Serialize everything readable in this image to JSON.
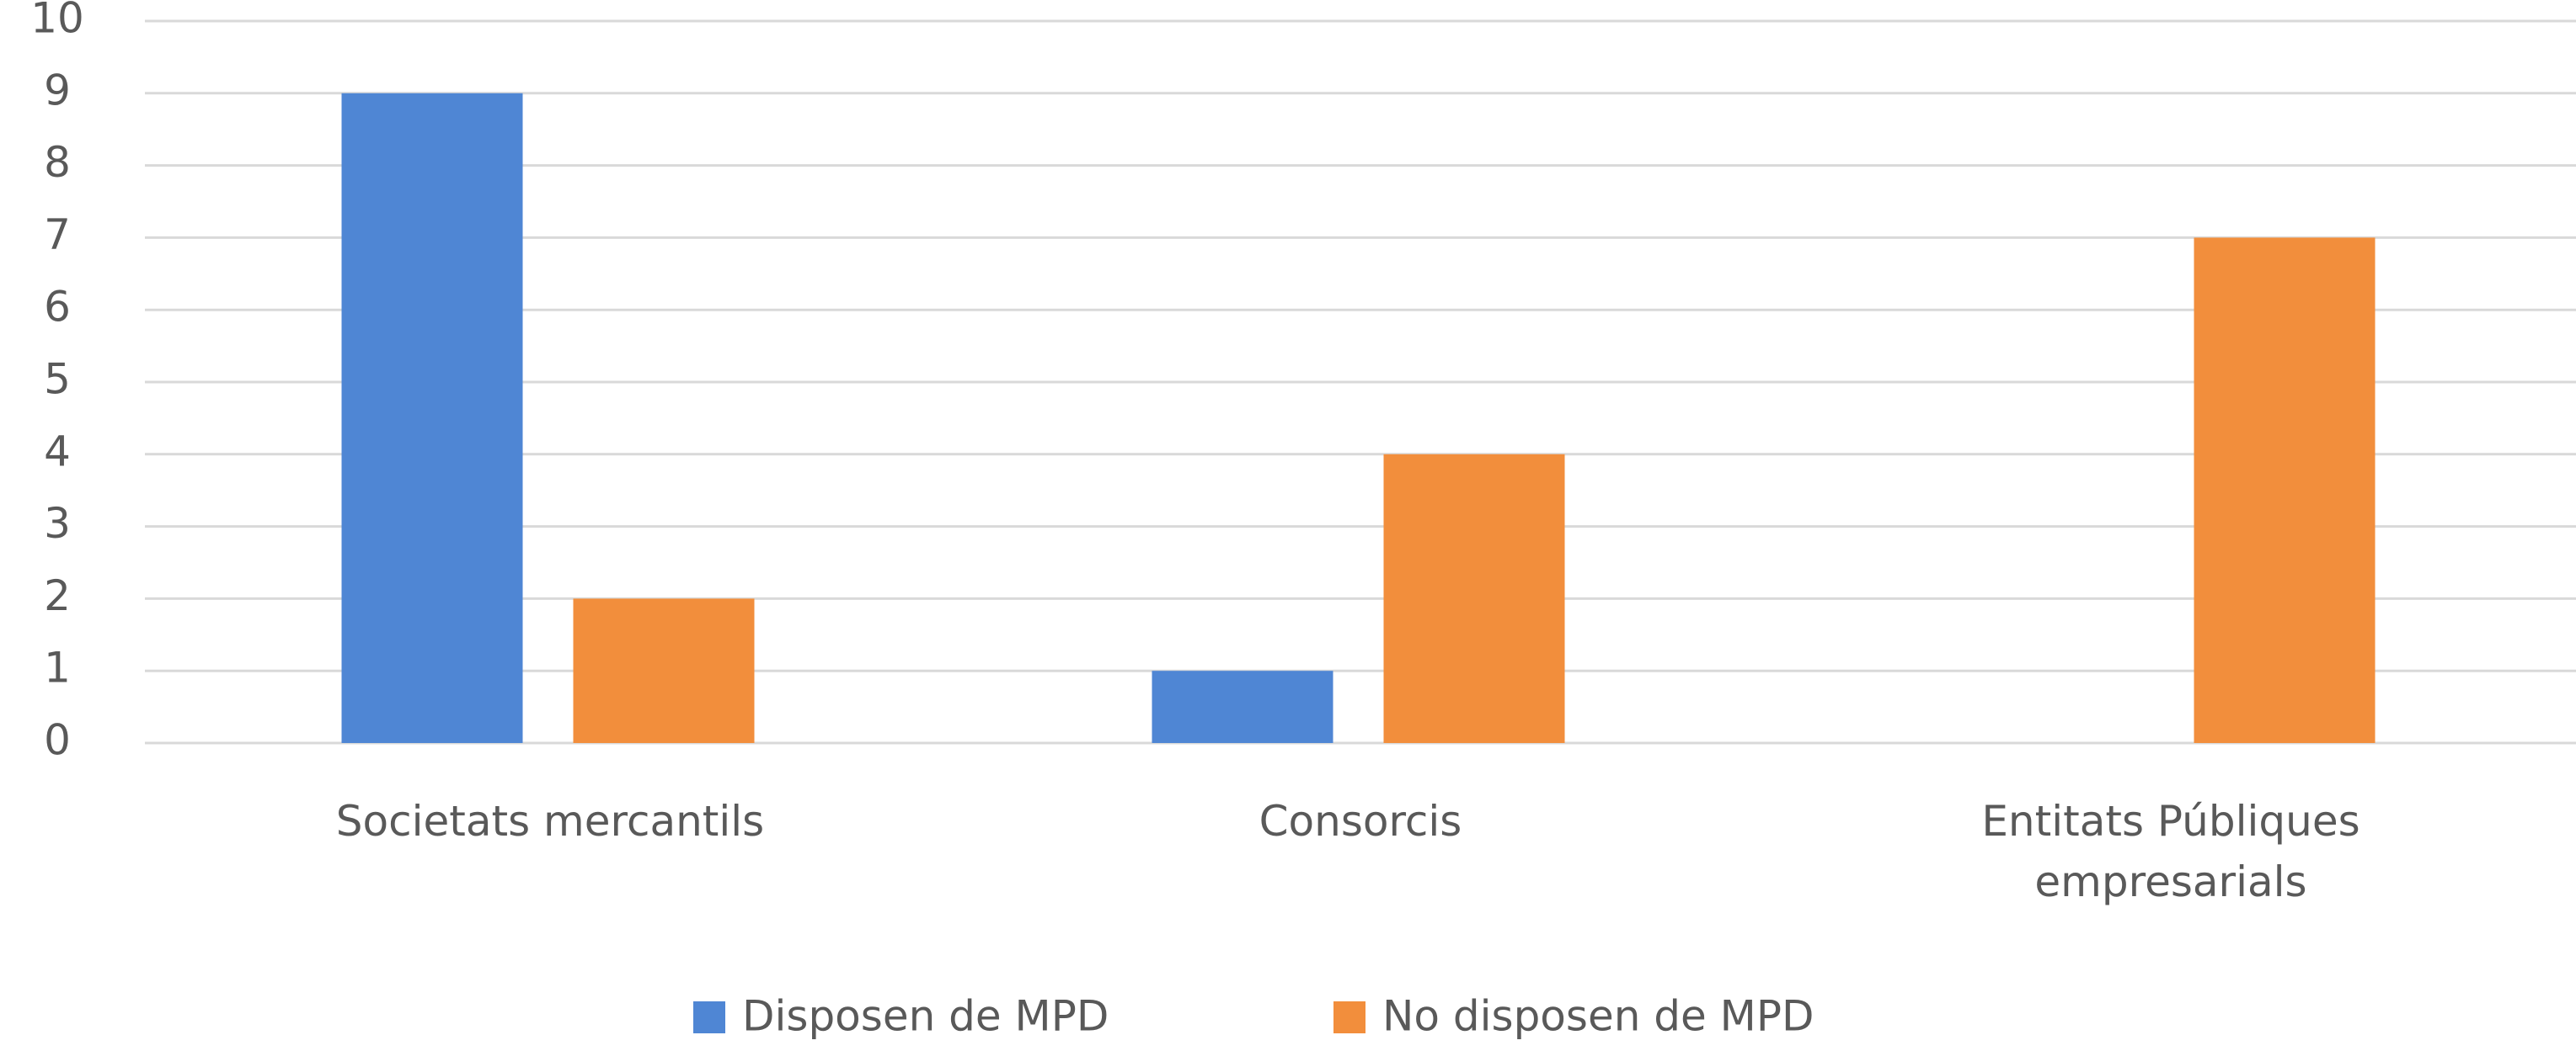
{
  "chart_data": {
    "type": "bar",
    "categories": [
      "Societats mercantils",
      "Consorcis",
      "Entitats Públiques empresarials"
    ],
    "series": [
      {
        "name": "Disposen de MPD",
        "color": "#4f86d4",
        "values": [
          9,
          1,
          0
        ]
      },
      {
        "name": "No disposen de MPD",
        "color": "#f28e3c",
        "values": [
          2,
          4,
          7
        ]
      }
    ],
    "ylim": [
      0,
      10
    ],
    "yticks": [
      0,
      1,
      2,
      3,
      4,
      5,
      6,
      7,
      8,
      9,
      10
    ],
    "grid": true,
    "legend": "bottom"
  }
}
